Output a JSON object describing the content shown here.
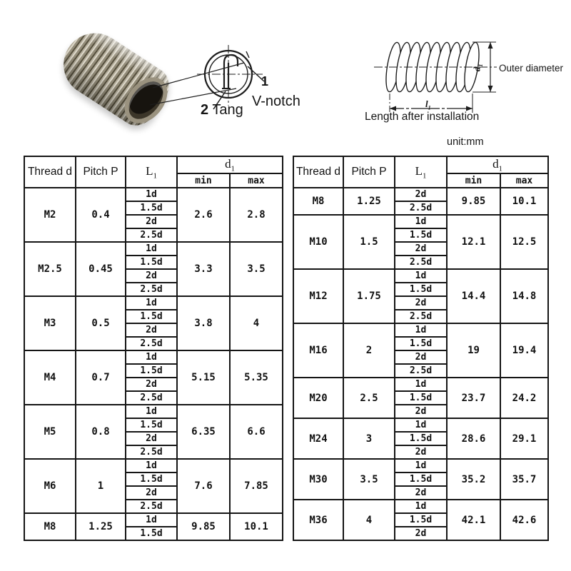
{
  "unit_label": "unit:mm",
  "diagram_labels": {
    "callout1_num": "1",
    "callout1_text": "V-notch",
    "callout2_num": "2",
    "callout2_text": " Tang",
    "outer_diameter": "Outer diameter",
    "length_after_installation": "Length after installation",
    "dim_d_letter": "d",
    "dim_d_sub": "1",
    "dim_l_letter": "l",
    "dim_l_sub": "1"
  },
  "table_header": {
    "thread": "Thread d",
    "pitch": "Pitch P",
    "l1_letter": "L",
    "l1_sub": "1",
    "d1_letter": "d",
    "d1_sub": "1",
    "min": "min",
    "max": "max"
  },
  "tables": [
    {
      "rows": [
        {
          "thread": "M2",
          "pitch": "0.4",
          "l1": [
            "1d",
            "1.5d",
            "2d",
            "2.5d"
          ],
          "min": "2.6",
          "max": "2.8"
        },
        {
          "thread": "M2.5",
          "pitch": "0.45",
          "l1": [
            "1d",
            "1.5d",
            "2d",
            "2.5d"
          ],
          "min": "3.3",
          "max": "3.5"
        },
        {
          "thread": "M3",
          "pitch": "0.5",
          "l1": [
            "1d",
            "1.5d",
            "2d",
            "2.5d"
          ],
          "min": "3.8",
          "max": "4"
        },
        {
          "thread": "M4",
          "pitch": "0.7",
          "l1": [
            "1d",
            "1.5d",
            "2d",
            "2.5d"
          ],
          "min": "5.15",
          "max": "5.35"
        },
        {
          "thread": "M5",
          "pitch": "0.8",
          "l1": [
            "1d",
            "1.5d",
            "2d",
            "2.5d"
          ],
          "min": "6.35",
          "max": "6.6"
        },
        {
          "thread": "M6",
          "pitch": "1",
          "l1": [
            "1d",
            "1.5d",
            "2d",
            "2.5d"
          ],
          "min": "7.6",
          "max": "7.85"
        },
        {
          "thread": "M8",
          "pitch": "1.25",
          "l1": [
            "1d",
            "1.5d"
          ],
          "min": "9.85",
          "max": "10.1"
        }
      ]
    },
    {
      "rows": [
        {
          "thread": "M8",
          "pitch": "1.25",
          "l1": [
            "2d",
            "2.5d"
          ],
          "min": "9.85",
          "max": "10.1"
        },
        {
          "thread": "M10",
          "pitch": "1.5",
          "l1": [
            "1d",
            "1.5d",
            "2d",
            "2.5d"
          ],
          "min": "12.1",
          "max": "12.5"
        },
        {
          "thread": "M12",
          "pitch": "1.75",
          "l1": [
            "1d",
            "1.5d",
            "2d",
            "2.5d"
          ],
          "min": "14.4",
          "max": "14.8"
        },
        {
          "thread": "M16",
          "pitch": "2",
          "l1": [
            "1d",
            "1.5d",
            "2d",
            "2.5d"
          ],
          "min": "19",
          "max": "19.4"
        },
        {
          "thread": "M20",
          "pitch": "2.5",
          "l1": [
            "1d",
            "1.5d",
            "2d"
          ],
          "min": "23.7",
          "max": "24.2"
        },
        {
          "thread": "M24",
          "pitch": "3",
          "l1": [
            "1d",
            "1.5d",
            "2d"
          ],
          "min": "28.6",
          "max": "29.1"
        },
        {
          "thread": "M30",
          "pitch": "3.5",
          "l1": [
            "1d",
            "1.5d",
            "2d"
          ],
          "min": "35.2",
          "max": "35.7"
        },
        {
          "thread": "M36",
          "pitch": "4",
          "l1": [
            "1d",
            "1.5d",
            "2d"
          ],
          "min": "42.1",
          "max": "42.6"
        }
      ]
    }
  ]
}
